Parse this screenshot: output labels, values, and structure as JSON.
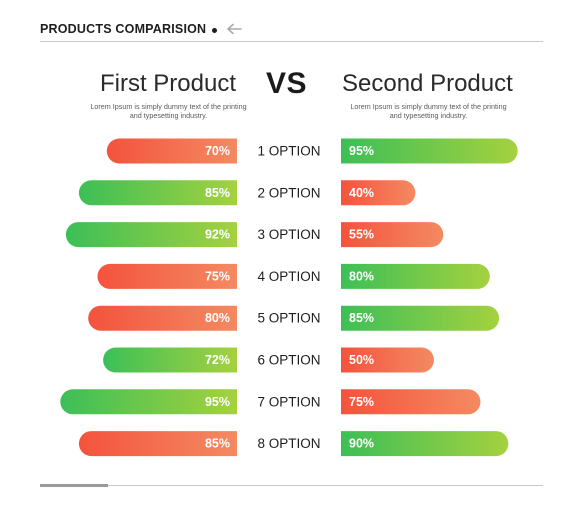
{
  "header": {
    "title": "PRODUCTS COMPARISION",
    "back_icon": "arrow-left-icon"
  },
  "products": {
    "left_name": "First Product",
    "right_name": "Second Product",
    "vs_label": "VS",
    "left_description": "Lorem Ipsum is simply dummy text of the printing and typesetting industry.",
    "right_description": "Lorem Ipsum is simply dummy text of the printing and typesetting industry."
  },
  "colors": {
    "high_start": "#3cbf57",
    "high_end": "#a5d13f",
    "low_start": "#f4533c",
    "low_end": "#f48a62"
  },
  "chart_data": {
    "type": "bar",
    "categories": [
      "1 OPTION",
      "2 OPTION",
      "3 OPTION",
      "4 OPTION",
      "5 OPTION",
      "6 OPTION",
      "7 OPTION",
      "8 OPTION"
    ],
    "series": [
      {
        "name": "First Product",
        "values": [
          70,
          85,
          92,
          75,
          80,
          72,
          95,
          85
        ],
        "levels": [
          "low",
          "high",
          "high",
          "low",
          "low",
          "high",
          "high",
          "low"
        ]
      },
      {
        "name": "Second Product",
        "values": [
          95,
          40,
          55,
          80,
          85,
          50,
          75,
          90
        ],
        "levels": [
          "high",
          "low",
          "low",
          "high",
          "high",
          "low",
          "low",
          "high"
        ]
      }
    ],
    "value_suffix": "%",
    "xlim": [
      0,
      100
    ]
  }
}
